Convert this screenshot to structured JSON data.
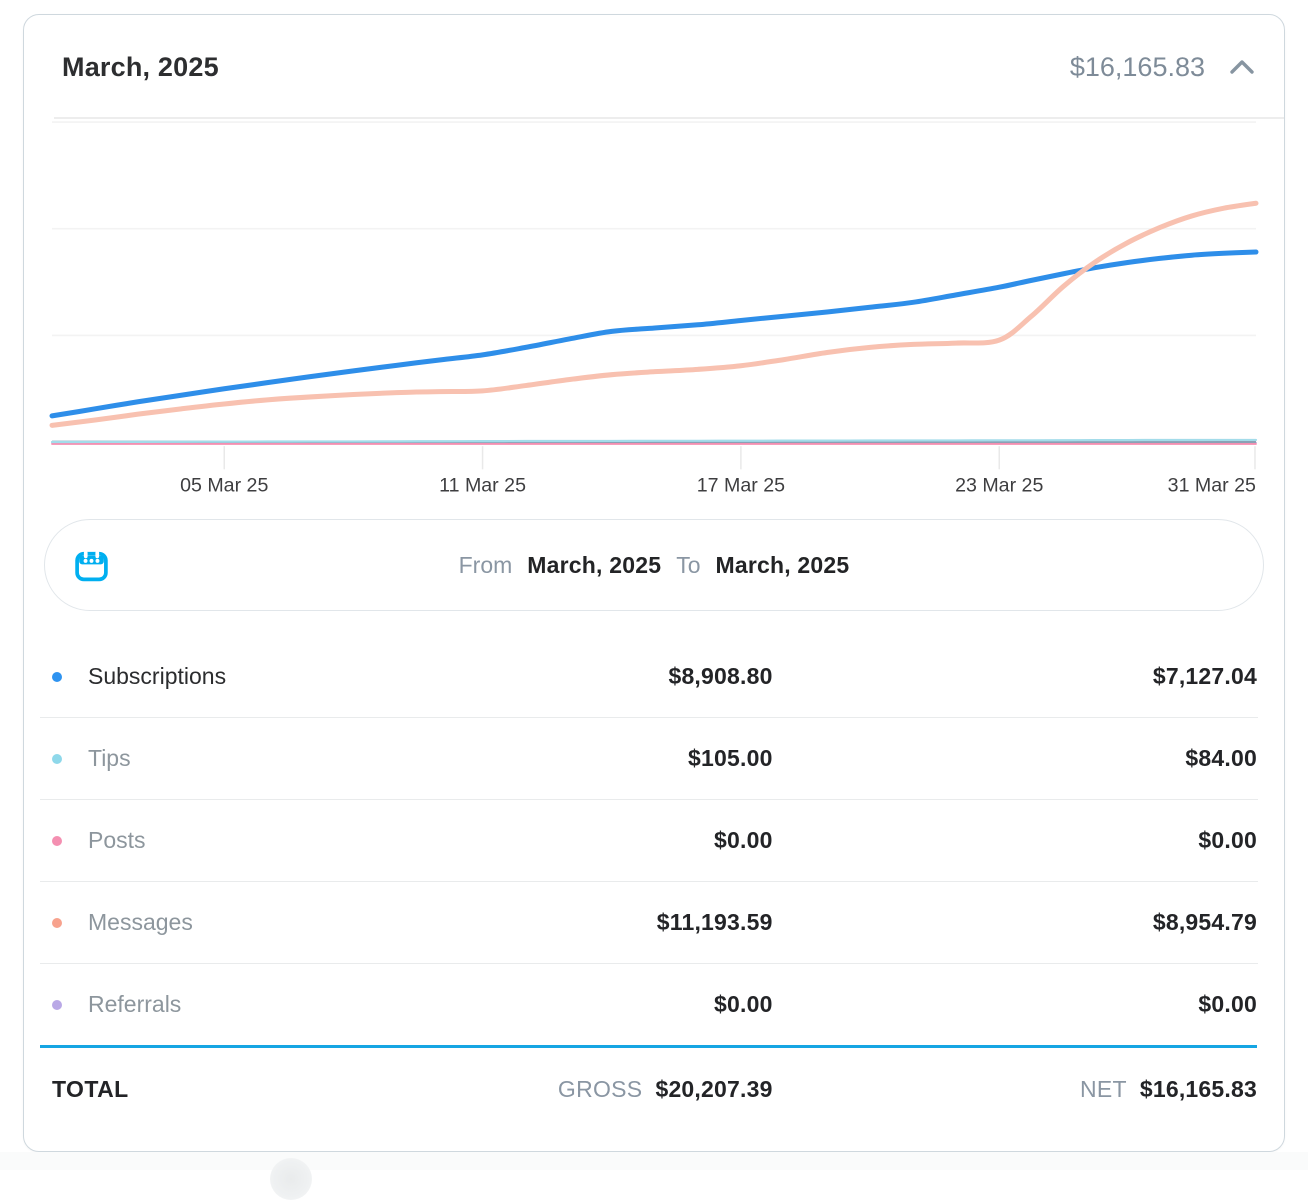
{
  "header": {
    "title": "March, 2025",
    "amount": "$16,165.83"
  },
  "chart_data": {
    "type": "line",
    "x_unit": "day of March 2025",
    "x_range_days": [
      1,
      31
    ],
    "x_tick_days": [
      5,
      11,
      17,
      23,
      31
    ],
    "x_tick_labels": [
      "05 Mar 25",
      "11 Mar 25",
      "17 Mar 25",
      "23 Mar 25",
      "31 Mar 25"
    ],
    "y_axis": {
      "min": 0,
      "max": 15600,
      "gridlines": [
        5000,
        10000,
        15000
      ],
      "labels_shown": false
    },
    "grid": true,
    "legend_position": "table-below",
    "axis_line_color": "#8ba1b5",
    "grid_color": "#f3f3f3",
    "tick_color": "#e9e9e9",
    "axis_label_color": "#3e3e40",
    "series": [
      {
        "name": "Subscriptions",
        "color": "#2e8ee9",
        "values": [
          1230,
          1560,
          1890,
          2200,
          2500,
          2790,
          3070,
          3340,
          3600,
          3850,
          4090,
          4440,
          4830,
          5190,
          5350,
          5500,
          5700,
          5900,
          6100,
          6320,
          6550,
          6900,
          7260,
          7580,
          7890,
          8180,
          8420,
          8610,
          8760,
          8850,
          8908.8
        ]
      },
      {
        "name": "Tips",
        "color": "#a3dcea",
        "values": [
          4,
          9,
          14,
          19,
          23,
          27,
          31,
          35,
          39,
          43,
          47,
          51,
          54,
          57,
          60,
          63,
          66,
          69,
          72,
          75,
          78,
          81,
          84,
          87,
          90,
          93,
          96,
          99,
          101,
          103,
          105
        ]
      },
      {
        "name": "Posts",
        "color": "#f48fb1",
        "values": [
          0,
          0,
          0,
          0,
          0,
          0,
          0,
          0,
          0,
          0,
          0,
          0,
          0,
          0,
          0,
          0,
          0,
          0,
          0,
          0,
          0,
          0,
          0,
          0,
          0,
          0,
          0,
          0,
          0,
          0,
          0
        ]
      },
      {
        "name": "Messages",
        "color": "#f8c1b0",
        "values": [
          790,
          1040,
          1310,
          1560,
          1790,
          1980,
          2120,
          2230,
          2320,
          2370,
          2400,
          2650,
          2930,
          3160,
          3300,
          3410,
          3580,
          3870,
          4200,
          4440,
          4580,
          4640,
          4780,
          5900,
          7300,
          8450,
          9350,
          10050,
          10600,
          10960,
          11193.59
        ]
      },
      {
        "name": "Referrals",
        "color": "#b4a6de",
        "values": [
          0,
          0,
          0,
          0,
          0,
          0,
          0,
          0,
          0,
          0,
          0,
          0,
          0,
          0,
          0,
          0,
          0,
          0,
          0,
          0,
          0,
          0,
          0,
          0,
          0,
          0,
          0,
          0,
          0,
          0,
          0
        ]
      }
    ]
  },
  "date_range": {
    "from_label": "From",
    "from_value": "March, 2025",
    "to_label": "To",
    "to_value": "March, 2025"
  },
  "table": {
    "rows": [
      {
        "label": "Subscriptions",
        "gross": "$8,908.80",
        "net": "$7,127.04",
        "dot_color": "#2e93f0",
        "active": true
      },
      {
        "label": "Tips",
        "gross": "$105.00",
        "net": "$84.00",
        "dot_color": "#8ed8ea",
        "active": false
      },
      {
        "label": "Posts",
        "gross": "$0.00",
        "net": "$0.00",
        "dot_color": "#f48fb1",
        "active": false
      },
      {
        "label": "Messages",
        "gross": "$11,193.59",
        "net": "$8,954.79",
        "dot_color": "#f7a28d",
        "active": false
      },
      {
        "label": "Referrals",
        "gross": "$0.00",
        "net": "$0.00",
        "dot_color": "#b9a8e6",
        "active": false
      }
    ],
    "total": {
      "label": "TOTAL",
      "gross_label": "GROSS",
      "gross": "$20,207.39",
      "net_label": "NET",
      "net": "$16,165.83"
    }
  },
  "colors": {
    "accent": "#00aff0",
    "total_divider": "#15a5e3",
    "card_border": "#cfd8de",
    "muted_text": "#8a96a3",
    "dark_text": "#232427",
    "header_amount": "#7e8b98"
  }
}
